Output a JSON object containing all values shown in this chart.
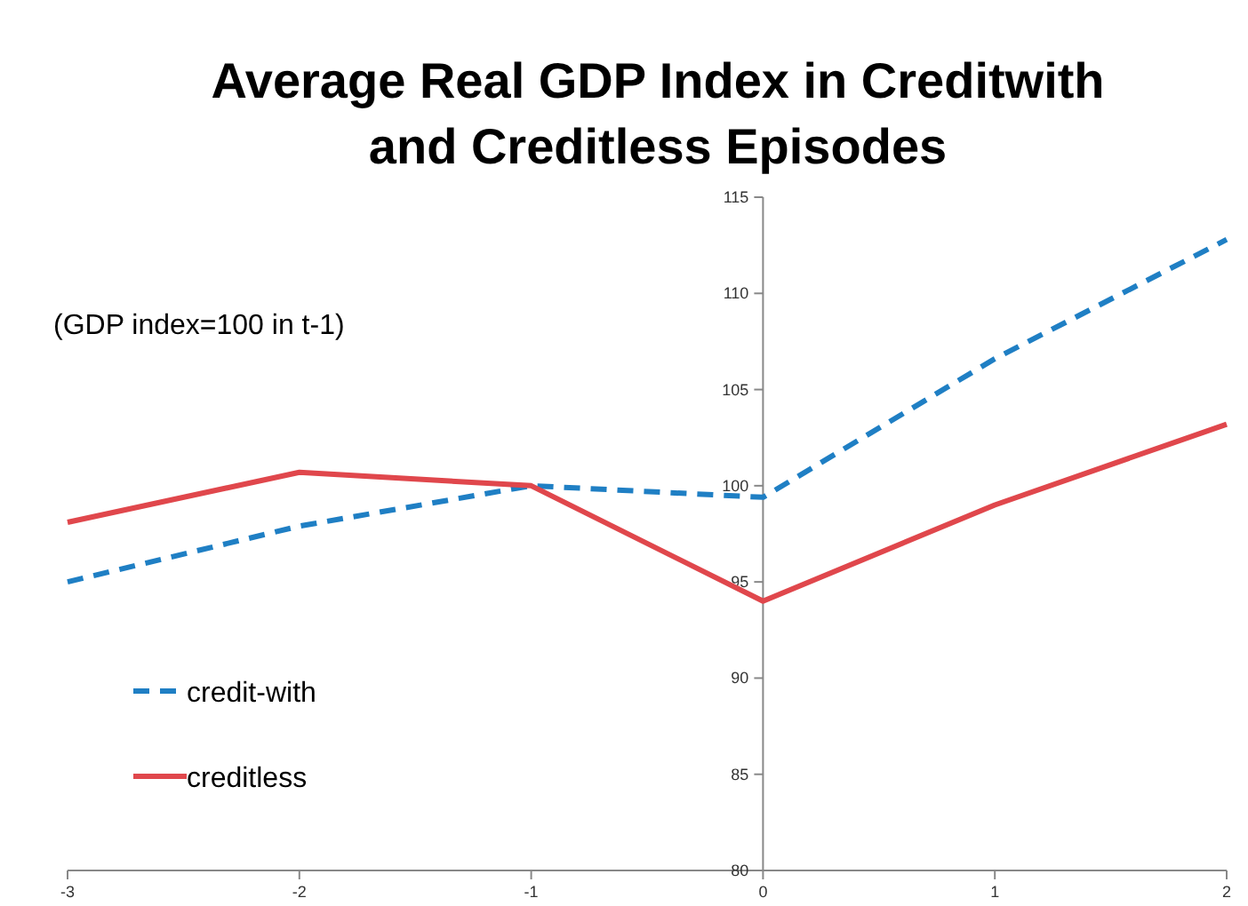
{
  "chart_data": {
    "type": "line",
    "title": "Average Real GDP Index in Creditwith and Creditless Episodes",
    "annotations": [
      "(GDP index=100 in t-1)"
    ],
    "x": [
      -3,
      -2,
      -1,
      0,
      1,
      2
    ],
    "series": [
      {
        "name": "credit-with",
        "color": "#1f7fc4",
        "line_style": "dashed",
        "values": [
          95.0,
          97.9,
          100,
          99.4,
          106.6,
          112.8
        ]
      },
      {
        "name": "creditless",
        "color": "#e0474c",
        "line_style": "solid",
        "values": [
          98.1,
          100.7,
          100,
          94.0,
          99.0,
          103.2
        ]
      }
    ],
    "xlim": [
      -3,
      2
    ],
    "xticks": [
      -3,
      -2,
      -1,
      0,
      1,
      2
    ],
    "ylim": [
      80,
      115
    ],
    "yticks": [
      80,
      85,
      90,
      95,
      100,
      105,
      110,
      115
    ],
    "grid": false,
    "legend": "bottom left",
    "marker": "none"
  }
}
